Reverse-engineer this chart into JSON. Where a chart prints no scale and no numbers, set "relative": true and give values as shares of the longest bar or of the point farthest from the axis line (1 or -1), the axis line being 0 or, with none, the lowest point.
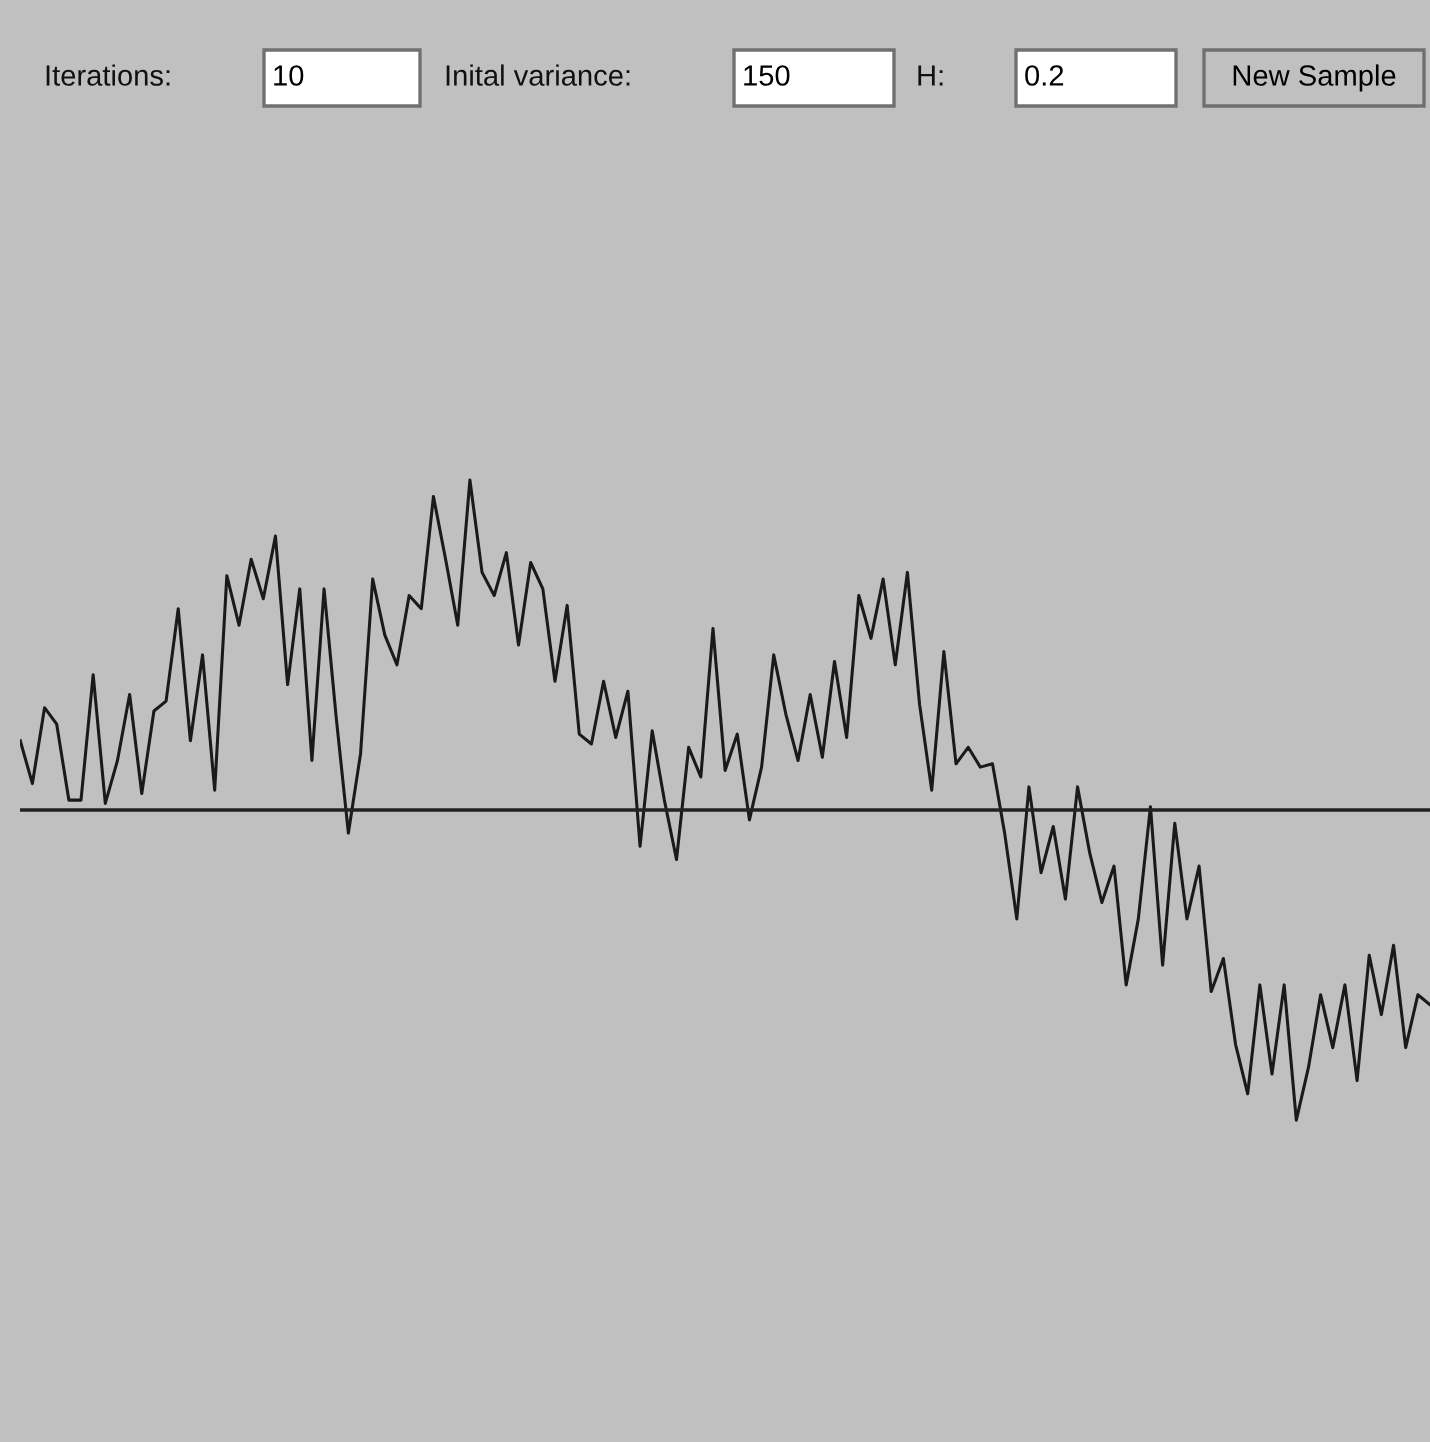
{
  "chart_data": {
    "type": "line",
    "relative": true,
    "color": "#1a1a1a",
    "line_style": "solid",
    "marker": "none",
    "annotations": [
      "Iterations:",
      "10",
      "Inital variance:",
      "150",
      "H:",
      "0.2",
      "New Sample"
    ],
    "categories": [
      null,
      null,
      null,
      null,
      null,
      null,
      null,
      null,
      null,
      null,
      null,
      null,
      null,
      null,
      null,
      null,
      null,
      null,
      null,
      null,
      null,
      null,
      null,
      null,
      null,
      null,
      null,
      null,
      null,
      null,
      null,
      null,
      null,
      null,
      null,
      null,
      null,
      null,
      null,
      null,
      null,
      null,
      null,
      null,
      null,
      null,
      null,
      null,
      null,
      null,
      null,
      null,
      null,
      null,
      null,
      null,
      null,
      null,
      null,
      null,
      null,
      null,
      null,
      null,
      null,
      null,
      null,
      null,
      null,
      null,
      null,
      null,
      null,
      null,
      null,
      null,
      null,
      null,
      null,
      null,
      null,
      null,
      null,
      null,
      null,
      null,
      null,
      null,
      null,
      null,
      null,
      null,
      null,
      null,
      null,
      null,
      null,
      null,
      null,
      null,
      null,
      null,
      null,
      null,
      null,
      null,
      null,
      null,
      null,
      null,
      null,
      null,
      null,
      null,
      null,
      null,
      null
    ],
    "values": [
      0.21,
      0.08,
      0.31,
      0.26,
      0.03,
      0.03,
      0.41,
      0.02,
      0.15,
      0.35,
      0.05,
      0.3,
      0.33,
      0.61,
      0.21,
      0.47,
      0.06,
      0.71,
      0.56,
      0.76,
      0.64,
      0.83,
      0.38,
      0.67,
      0.15,
      0.67,
      0.28,
      -0.07,
      0.17,
      0.7,
      0.53,
      0.44,
      0.65,
      0.61,
      0.95,
      0.76,
      0.56,
      1,
      0.72,
      0.65,
      0.78,
      0.5,
      0.75,
      0.67,
      0.39,
      0.62,
      0.23,
      0.2,
      0.39,
      0.22,
      0.36,
      -0.11,
      0.24,
      0.03,
      -0.15,
      0.19,
      0.1,
      0.55,
      0.12,
      0.23,
      -0.03,
      0.13,
      0.47,
      0.29,
      0.15,
      0.35,
      0.16,
      0.45,
      0.22,
      0.65,
      0.52,
      0.7,
      0.44,
      0.72,
      0.32,
      0.06,
      0.48,
      0.14,
      0.19,
      0.13,
      0.14,
      -0.07,
      -0.33,
      0.07,
      -0.19,
      -0.05,
      -0.27,
      0.07,
      -0.13,
      -0.28,
      -0.17,
      -0.53,
      -0.33,
      0.01,
      -0.47,
      -0.04,
      -0.33,
      -0.17,
      -0.55,
      -0.45,
      -0.71,
      -0.86,
      -0.53,
      -0.8,
      -0.53,
      -0.94,
      -0.78,
      -0.56,
      -0.72,
      -0.53,
      -0.82,
      -0.44,
      -0.62,
      -0.41,
      -0.72,
      -0.56,
      -0.59
    ]
  }
}
